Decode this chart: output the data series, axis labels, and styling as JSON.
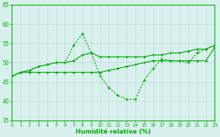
{
  "xlabel": "Humidité relative (%)",
  "xlim": [
    0,
    23
  ],
  "ylim": [
    35,
    65
  ],
  "yticks": [
    35,
    40,
    45,
    50,
    55,
    60,
    65
  ],
  "xticks": [
    0,
    1,
    2,
    3,
    4,
    5,
    6,
    7,
    8,
    9,
    10,
    11,
    12,
    13,
    14,
    15,
    16,
    17,
    18,
    19,
    20,
    21,
    22,
    23
  ],
  "background_color": "#d8f0ee",
  "grid_color": "#b8d8d4",
  "line_color": "#00aa00",
  "line1_y": [
    46.5,
    47.5,
    48.0,
    49.0,
    49.5,
    50.0,
    50.0,
    54.5,
    57.5,
    52.5,
    46.5,
    43.5,
    41.5,
    40.5,
    40.5,
    45.5,
    48.5,
    51.0,
    50.5,
    50.5,
    50.0,
    52.5,
    53.5,
    54.5
  ],
  "line2_y": [
    46.5,
    47.5,
    48.0,
    49.0,
    49.5,
    50.0,
    50.0,
    50.5,
    52.0,
    52.5,
    51.5,
    51.5,
    51.5,
    51.5,
    51.5,
    51.5,
    52.0,
    52.0,
    52.5,
    52.5,
    53.0,
    53.5,
    53.5,
    54.5
  ],
  "line3_y": [
    46.5,
    47.5,
    47.5,
    47.5,
    47.5,
    47.5,
    47.5,
    47.5,
    47.5,
    47.5,
    47.5,
    48.0,
    48.5,
    49.0,
    49.5,
    50.0,
    50.5,
    50.5,
    50.5,
    50.5,
    50.5,
    50.5,
    50.5,
    54.0
  ]
}
